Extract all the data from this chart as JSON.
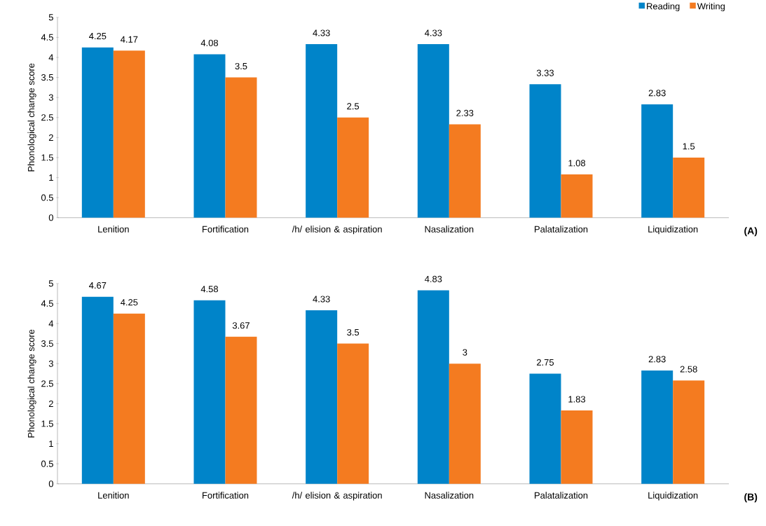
{
  "chart_data": [
    {
      "type": "bar",
      "ylabel": "Phonological change score",
      "categories": [
        "Lenition",
        "Fortification",
        "/h/ elision & aspiration",
        "Nasalization",
        "Palatalization",
        "Liquidization"
      ],
      "series": [
        {
          "name": "Reading",
          "color": "#0084c9",
          "values": [
            4.25,
            4.08,
            4.33,
            4.33,
            3.33,
            2.83
          ],
          "value_labels": [
            "4.25",
            "4.08",
            "4.33",
            "4.33",
            "3.33",
            "2.83"
          ]
        },
        {
          "name": "Writing",
          "color": "#f47b20",
          "values": [
            4.17,
            3.5,
            2.5,
            2.33,
            1.08,
            1.5
          ],
          "value_labels": [
            "4.17",
            "3.5",
            "2.5",
            "2.33",
            "1.08",
            "1.5"
          ]
        }
      ],
      "ylim": [
        0,
        5
      ],
      "yticks": [
        0,
        0.5,
        1,
        1.5,
        2,
        2.5,
        3,
        3.5,
        4,
        4.5,
        5
      ],
      "legend": "top right",
      "annotations": [
        "(A)"
      ]
    },
    {
      "type": "bar",
      "ylabel": "Phonological change score",
      "categories": [
        "Lenition",
        "Fortification",
        "/h/ elision & aspiration",
        "Nasalization",
        "Palatalization",
        "Liquidization"
      ],
      "series": [
        {
          "color": "#0084c9",
          "values": [
            4.67,
            4.58,
            4.33,
            4.83,
            2.75,
            2.83
          ],
          "value_labels": [
            "4.67",
            "4.58",
            "4.33",
            "4.83",
            "2.75",
            "2.83"
          ]
        },
        {
          "color": "#f47b20",
          "values": [
            4.25,
            3.67,
            3.5,
            3,
            1.83,
            2.58
          ],
          "value_labels": [
            "4.25",
            "3.67",
            "3.5",
            "3",
            "1.83",
            "2.58"
          ]
        }
      ],
      "ylim": [
        0,
        5
      ],
      "yticks": [
        0,
        0.5,
        1,
        1.5,
        2,
        2.5,
        3,
        3.5,
        4,
        4.5,
        5
      ],
      "legend": false,
      "annotations": [
        "(B)"
      ]
    }
  ]
}
